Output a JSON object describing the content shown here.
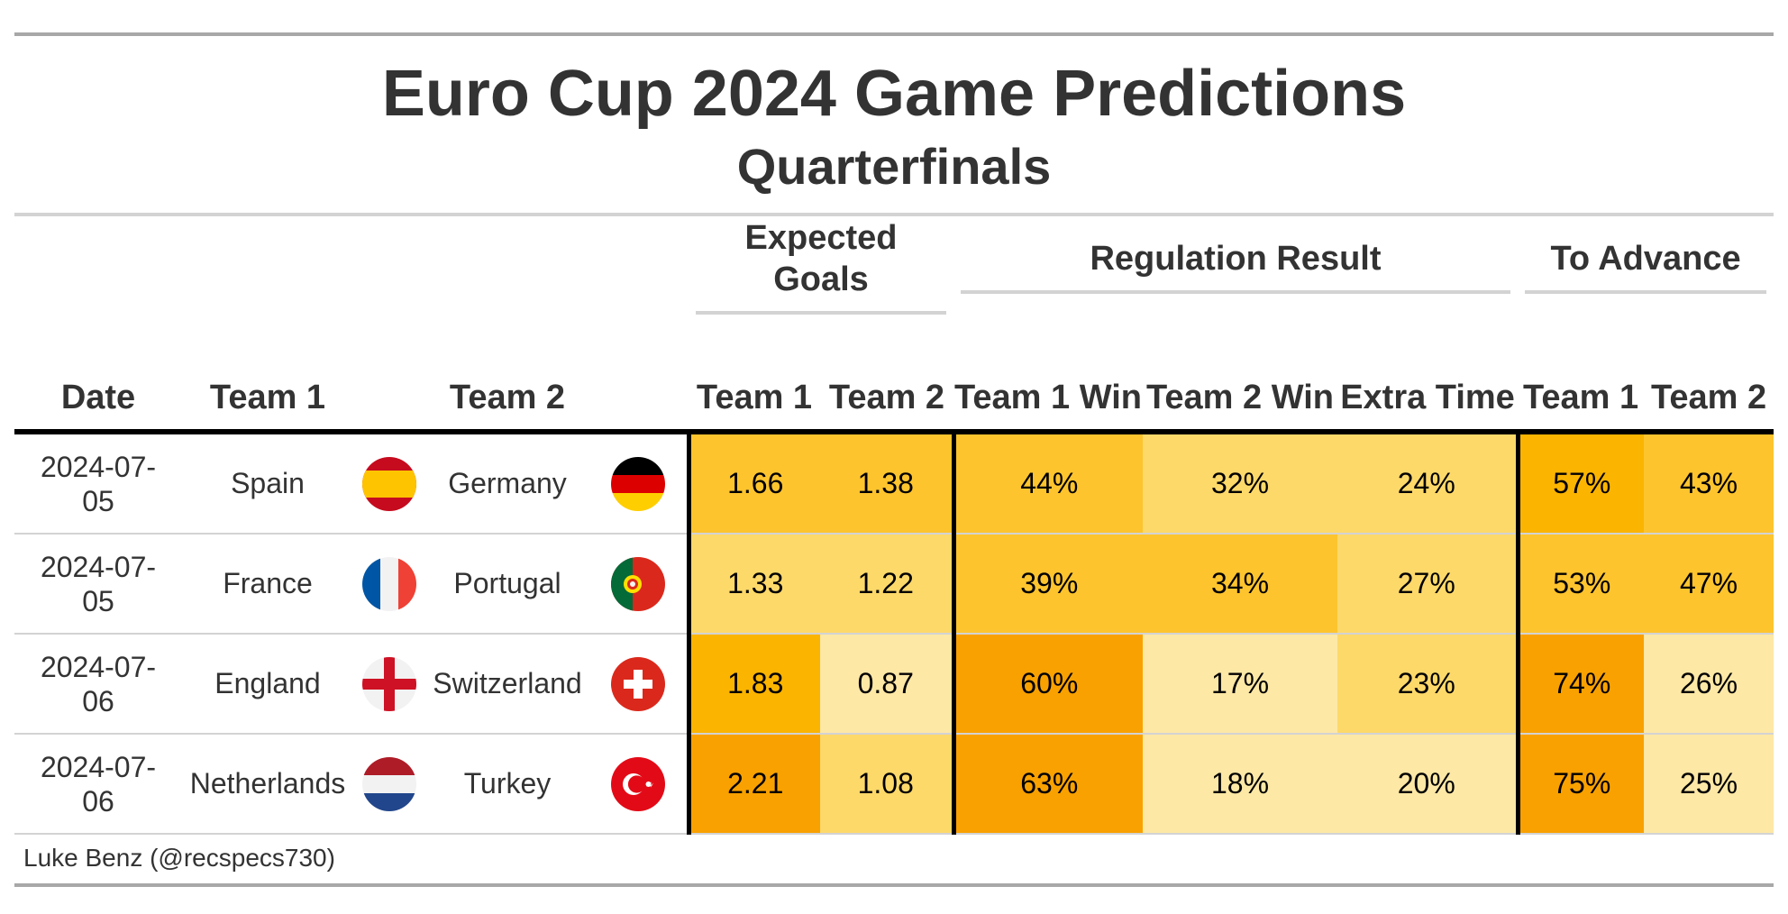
{
  "title": "Euro Cup 2024 Game Predictions",
  "subtitle": "Quarterfinals",
  "spanners": {
    "expected_goals": "Expected Goals",
    "regulation_result": "Regulation Result",
    "to_advance": "To Advance"
  },
  "columns": {
    "date": "Date",
    "team1": "Team 1",
    "team2": "Team 2",
    "xg_team1": "Team 1",
    "xg_team2": "Team 2",
    "reg_team1_win": "Team 1 Win",
    "reg_team2_win": "Team 2 Win",
    "reg_extra_time": "Extra Time",
    "adv_team1": "Team 1",
    "adv_team2": "Team 2"
  },
  "source": "Luke Benz (@recspecs730)",
  "colors": {
    "cell_scale": [
      "#fde8a6",
      "#fdd96a",
      "#fdc42e",
      "#fbb400",
      "#f9a100"
    ]
  },
  "chart_data": {
    "type": "table",
    "rows": [
      {
        "date": "2024-07-05",
        "team1": "Spain",
        "team1_flag": "spain-flag-icon",
        "team2": "Germany",
        "team2_flag": "germany-flag-icon",
        "xg1": "1.66",
        "xg2": "1.38",
        "win1": "44%",
        "win2": "32%",
        "extra": "24%",
        "adv1": "57%",
        "adv2": "43%"
      },
      {
        "date": "2024-07-05",
        "team1": "France",
        "team1_flag": "france-flag-icon",
        "team2": "Portugal",
        "team2_flag": "portugal-flag-icon",
        "xg1": "1.33",
        "xg2": "1.22",
        "win1": "39%",
        "win2": "34%",
        "extra": "27%",
        "adv1": "53%",
        "adv2": "47%"
      },
      {
        "date": "2024-07-06",
        "team1": "England",
        "team1_flag": "england-flag-icon",
        "team2": "Switzerland",
        "team2_flag": "switzerland-flag-icon",
        "xg1": "1.83",
        "xg2": "0.87",
        "win1": "60%",
        "win2": "17%",
        "extra": "23%",
        "adv1": "74%",
        "adv2": "26%"
      },
      {
        "date": "2024-07-06",
        "team1": "Netherlands",
        "team1_flag": "netherlands-flag-icon",
        "team2": "Turkey",
        "team2_flag": "turkey-flag-icon",
        "xg1": "2.21",
        "xg2": "1.08",
        "win1": "63%",
        "win2": "18%",
        "extra": "20%",
        "adv1": "75%",
        "adv2": "25%"
      }
    ]
  }
}
